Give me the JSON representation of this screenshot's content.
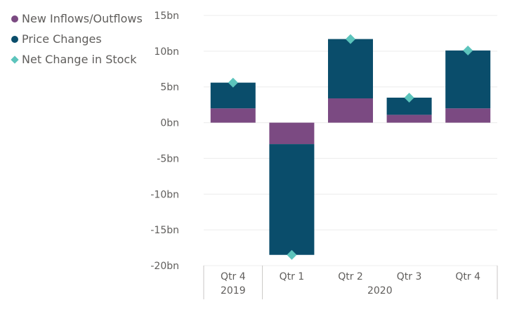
{
  "chart_data": {
    "type": "bar",
    "stacked": true,
    "categories": [
      "Qtr 4",
      "Qtr 1",
      "Qtr 2",
      "Qtr 3",
      "Qtr 4"
    ],
    "category_groups": [
      {
        "label": "2019",
        "count": 1
      },
      {
        "label": "2020",
        "count": 4
      }
    ],
    "series": [
      {
        "name": "New Inflows/Outflows",
        "type": "bar",
        "color": "#7b4a82",
        "values": [
          2.0,
          -3.0,
          3.4,
          1.1,
          2.0
        ]
      },
      {
        "name": "Price Changes",
        "type": "bar",
        "color": "#0a4d6b",
        "values": [
          3.6,
          -15.5,
          8.3,
          2.4,
          8.1
        ]
      },
      {
        "name": "Net Change in Stock",
        "type": "marker",
        "marker": "diamond",
        "color": "#5cc4bc",
        "values": [
          5.6,
          -18.5,
          11.7,
          3.5,
          10.1
        ]
      }
    ],
    "ylim": [
      -20,
      15
    ],
    "yticks": [
      -20,
      -15,
      -10,
      -5,
      0,
      5,
      10,
      15
    ],
    "ytick_labels": [
      "-20bn",
      "-15bn",
      "-10bn",
      "-5bn",
      "0bn",
      "5bn",
      "10bn",
      "15bn"
    ],
    "grid": true,
    "legend_position": "top-left",
    "title": "",
    "xlabel": "",
    "ylabel": ""
  }
}
